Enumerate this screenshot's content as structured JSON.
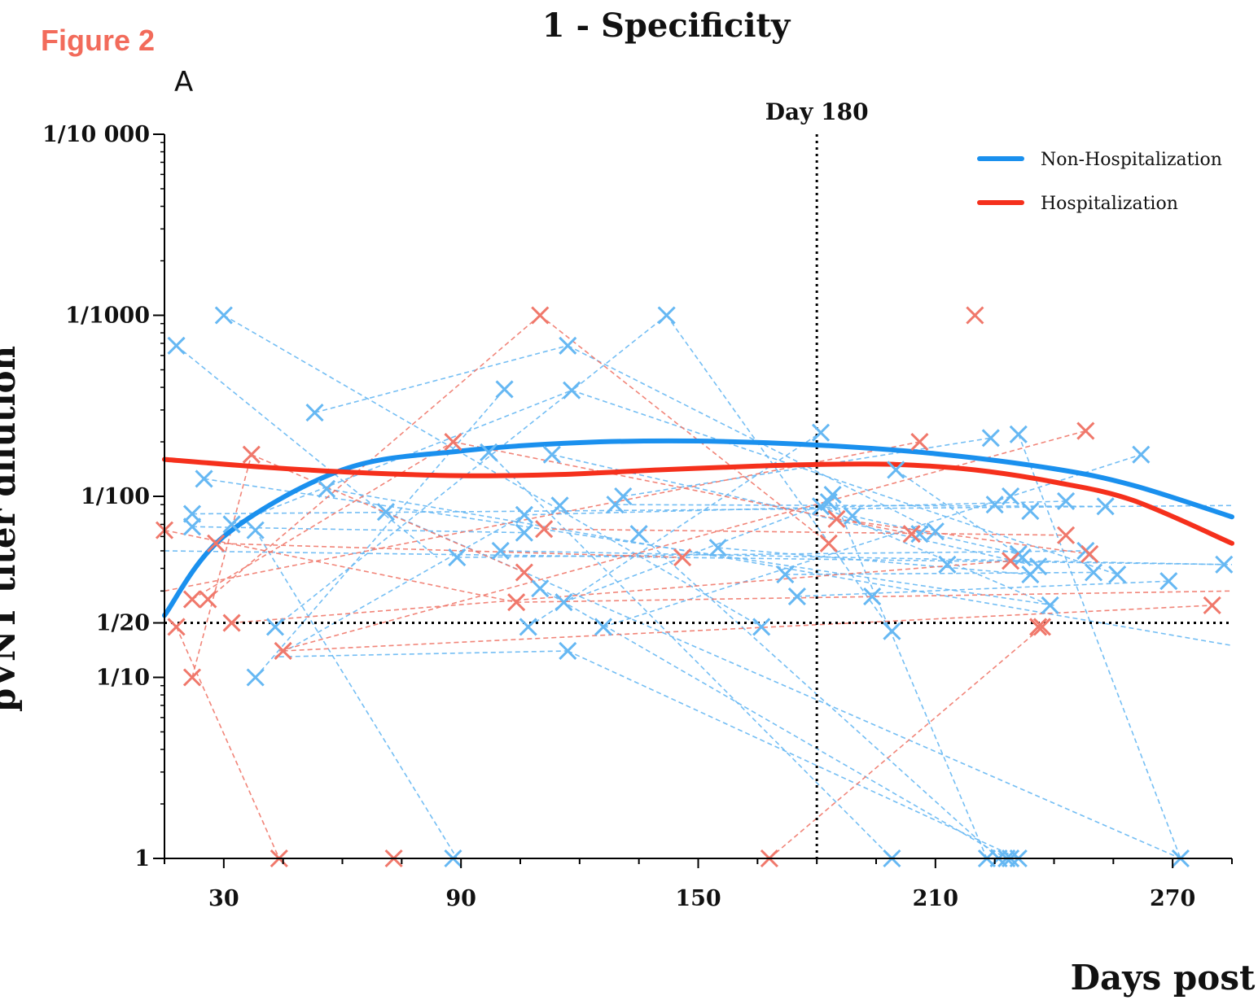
{
  "figure_label": "Figure 2",
  "panel_label": "A",
  "chart_data": {
    "type": "line",
    "title": "1 - Specificity",
    "xlabel": "Days post",
    "ylabel": "pVNT titer dilution",
    "x_ticks": [
      30,
      90,
      150,
      210,
      270
    ],
    "x_range": [
      15,
      285
    ],
    "y_scale": "log",
    "y_range": [
      1,
      10000
    ],
    "y_ticks": [
      {
        "value": 1,
        "label": "1"
      },
      {
        "value": 10,
        "label": "1/10"
      },
      {
        "value": 20,
        "label": "1/20"
      },
      {
        "value": 100,
        "label": "1/100"
      },
      {
        "value": 1000,
        "label": "1/1000"
      },
      {
        "value": 10000,
        "label": "1/10 000"
      }
    ],
    "reference_lines": {
      "vertical": {
        "x": 180,
        "label": "Day 180"
      },
      "horizontal": {
        "y": 20
      }
    },
    "legend_position": "top-right",
    "colors": {
      "non_hospitalization": "#1a90ee",
      "hospitalization": "#f5301c",
      "non_hospitalization_points": "#66b8f3",
      "hospitalization_points": "#f0786b"
    },
    "series": [
      {
        "name": "Non-Hospitalization",
        "key": "non_hospitalization",
        "trend": [
          [
            15,
            22
          ],
          [
            30,
            60
          ],
          [
            60,
            140
          ],
          [
            90,
            178
          ],
          [
            120,
            198
          ],
          [
            150,
            202
          ],
          [
            180,
            192
          ],
          [
            210,
            172
          ],
          [
            240,
            142
          ],
          [
            260,
            115
          ],
          [
            285,
            77
          ]
        ],
        "points": [
          [
            18,
            680
          ],
          [
            30,
            1000
          ],
          [
            22,
            80
          ],
          [
            25,
            125
          ],
          [
            22,
            68
          ],
          [
            32,
            70
          ],
          [
            38,
            65
          ],
          [
            38,
            10
          ],
          [
            43,
            19
          ],
          [
            53,
            290
          ],
          [
            56,
            110
          ],
          [
            71,
            82
          ],
          [
            89,
            46
          ],
          [
            97,
            175
          ],
          [
            100,
            50
          ],
          [
            101,
            390
          ],
          [
            106,
            79
          ],
          [
            106,
            63
          ],
          [
            107,
            19
          ],
          [
            110,
            31
          ],
          [
            113,
            170
          ],
          [
            115,
            89
          ],
          [
            117,
            680
          ],
          [
            118,
            385
          ],
          [
            116,
            26
          ],
          [
            117,
            14
          ],
          [
            126,
            19
          ],
          [
            129,
            90
          ],
          [
            131,
            100
          ],
          [
            135,
            62
          ],
          [
            142,
            1000
          ],
          [
            155,
            52
          ],
          [
            166,
            19
          ],
          [
            172,
            37
          ],
          [
            175,
            28
          ],
          [
            181,
            88
          ],
          [
            181,
            225
          ],
          [
            184,
            102
          ],
          [
            183,
            93
          ],
          [
            189,
            78
          ],
          [
            194,
            28
          ],
          [
            199,
            18
          ],
          [
            200,
            140
          ],
          [
            206,
            62
          ],
          [
            210,
            64
          ],
          [
            213,
            42
          ],
          [
            224,
            210
          ],
          [
            225,
            90
          ],
          [
            229,
            100
          ],
          [
            231,
            48
          ],
          [
            234,
            83
          ],
          [
            231,
            220
          ],
          [
            232,
            46
          ],
          [
            234,
            37
          ],
          [
            236,
            41
          ],
          [
            239,
            25
          ],
          [
            243,
            94
          ],
          [
            248,
            50
          ],
          [
            250,
            38
          ],
          [
            253,
            88
          ],
          [
            256,
            37
          ],
          [
            262,
            170
          ],
          [
            269,
            34
          ],
          [
            283,
            42
          ],
          [
            223,
            1
          ],
          [
            226,
            1
          ],
          [
            228,
            1
          ],
          [
            229,
            1
          ],
          [
            231,
            1
          ],
          [
            88,
            1
          ],
          [
            199,
            1
          ],
          [
            272,
            1
          ]
        ],
        "links": [
          [
            [
              15,
              50
            ],
            [
              285,
              42
            ]
          ],
          [
            [
              22,
              80
            ],
            [
              285,
              89
            ]
          ],
          [
            [
              30,
              1000
            ],
            [
              166,
              19
            ]
          ],
          [
            [
              18,
              680
            ],
            [
              84,
              46
            ]
          ],
          [
            [
              22,
              68
            ],
            [
              106,
              63
            ]
          ],
          [
            [
              25,
              125
            ],
            [
              240,
              25
            ]
          ],
          [
            [
              32,
              70
            ],
            [
              118,
              385
            ]
          ],
          [
            [
              38,
              65
            ],
            [
              89,
              1
            ]
          ],
          [
            [
              38,
              10
            ],
            [
              101,
              390
            ]
          ],
          [
            [
              43,
              19
            ],
            [
              142,
              1000
            ]
          ],
          [
            [
              53,
              290
            ],
            [
              117,
              680
            ]
          ],
          [
            [
              56,
              110
            ],
            [
              285,
              15
            ]
          ],
          [
            [
              71,
              82
            ],
            [
              272,
              1
            ]
          ],
          [
            [
              89,
              46
            ],
            [
              248,
              50
            ]
          ],
          [
            [
              97,
              175
            ],
            [
              199,
              1
            ]
          ],
          [
            [
              100,
              50
            ],
            [
              283,
              42
            ]
          ],
          [
            [
              106,
              79
            ],
            [
              243,
              94
            ]
          ],
          [
            [
              107,
              19
            ],
            [
              181,
              225
            ]
          ],
          [
            [
              110,
              31
            ],
            [
              228,
              1
            ]
          ],
          [
            [
              113,
              170
            ],
            [
              236,
              41
            ]
          ],
          [
            [
              117,
              680
            ],
            [
              210,
              64
            ]
          ],
          [
            [
              118,
              385
            ],
            [
              256,
              37
            ]
          ],
          [
            [
              116,
              26
            ],
            [
              183,
              93
            ]
          ],
          [
            [
              117,
              14
            ],
            [
              231,
              1
            ]
          ],
          [
            [
              126,
              19
            ],
            [
              262,
              170
            ]
          ],
          [
            [
              129,
              90
            ],
            [
              253,
              88
            ]
          ],
          [
            [
              131,
              100
            ],
            [
              224,
              210
            ]
          ],
          [
            [
              135,
              62
            ],
            [
              226,
              1
            ]
          ],
          [
            [
              142,
              1000
            ],
            [
              199,
              18
            ]
          ],
          [
            [
              155,
              52
            ],
            [
              234,
              37
            ]
          ],
          [
            [
              172,
              37
            ],
            [
              250,
              38
            ]
          ],
          [
            [
              175,
              28
            ],
            [
              269,
              34
            ]
          ],
          [
            [
              181,
              88
            ],
            [
              239,
              25
            ]
          ],
          [
            [
              184,
              102
            ],
            [
              223,
              1
            ]
          ],
          [
            [
              189,
              78
            ],
            [
              231,
              48
            ]
          ],
          [
            [
              231,
              220
            ],
            [
              272,
              1
            ]
          ],
          [
            [
              200,
              140
            ],
            [
              232,
              46
            ]
          ],
          [
            [
              44,
              13
            ],
            [
              117,
              14
            ]
          ],
          [
            [
              43,
              13
            ],
            [
              106,
              79
            ]
          ]
        ]
      },
      {
        "name": "Hospitalization",
        "key": "hospitalization",
        "trend": [
          [
            15,
            160
          ],
          [
            40,
            145
          ],
          [
            65,
            135
          ],
          [
            90,
            130
          ],
          [
            115,
            132
          ],
          [
            140,
            140
          ],
          [
            165,
            147
          ],
          [
            180,
            150
          ],
          [
            200,
            150
          ],
          [
            220,
            140
          ],
          [
            240,
            120
          ],
          [
            260,
            95
          ],
          [
            285,
            55
          ]
        ],
        "points": [
          [
            15,
            65
          ],
          [
            18,
            19
          ],
          [
            22,
            10
          ],
          [
            22,
            27
          ],
          [
            26,
            27
          ],
          [
            28,
            55
          ],
          [
            32,
            20
          ],
          [
            37,
            170
          ],
          [
            44,
            1
          ],
          [
            45,
            14
          ],
          [
            73,
            1
          ],
          [
            88,
            200
          ],
          [
            104,
            26
          ],
          [
            106,
            38
          ],
          [
            110,
            1000
          ],
          [
            111,
            66
          ],
          [
            146,
            46
          ],
          [
            168,
            1
          ],
          [
            183,
            55
          ],
          [
            185,
            75
          ],
          [
            204,
            62
          ],
          [
            206,
            200
          ],
          [
            220,
            1000
          ],
          [
            229,
            44
          ],
          [
            236,
            19
          ],
          [
            237,
            19
          ],
          [
            243,
            61
          ],
          [
            248,
            230
          ],
          [
            249,
            48
          ],
          [
            280,
            25
          ]
        ],
        "links": [
          [
            [
              15,
              65
            ],
            [
              104,
              26
            ]
          ],
          [
            [
              18,
              19
            ],
            [
              44,
              1
            ]
          ],
          [
            [
              22,
              10
            ],
            [
              37,
              170
            ]
          ],
          [
            [
              22,
              27
            ],
            [
              88,
              200
            ]
          ],
          [
            [
              26,
              27
            ],
            [
              110,
              1000
            ]
          ],
          [
            [
              28,
              55
            ],
            [
              146,
              46
            ]
          ],
          [
            [
              32,
              20
            ],
            [
              229,
              44
            ]
          ],
          [
            [
              37,
              170
            ],
            [
              106,
              38
            ]
          ],
          [
            [
              44,
              14
            ],
            [
              248,
              230
            ]
          ],
          [
            [
              45,
              14
            ],
            [
              280,
              25
            ]
          ],
          [
            [
              88,
              200
            ],
            [
              204,
              62
            ]
          ],
          [
            [
              110,
              1000
            ],
            [
              183,
              55
            ]
          ],
          [
            [
              111,
              66
            ],
            [
              243,
              61
            ]
          ],
          [
            [
              168,
              1
            ],
            [
              237,
              19
            ]
          ],
          [
            [
              185,
              75
            ],
            [
              249,
              48
            ]
          ],
          [
            [
              15,
              30
            ],
            [
              206,
              200
            ]
          ],
          [
            [
              104,
              26
            ],
            [
              285,
              30
            ]
          ],
          [
            [
              73,
              1
            ],
            [
              168,
              1
            ]
          ]
        ]
      }
    ]
  }
}
